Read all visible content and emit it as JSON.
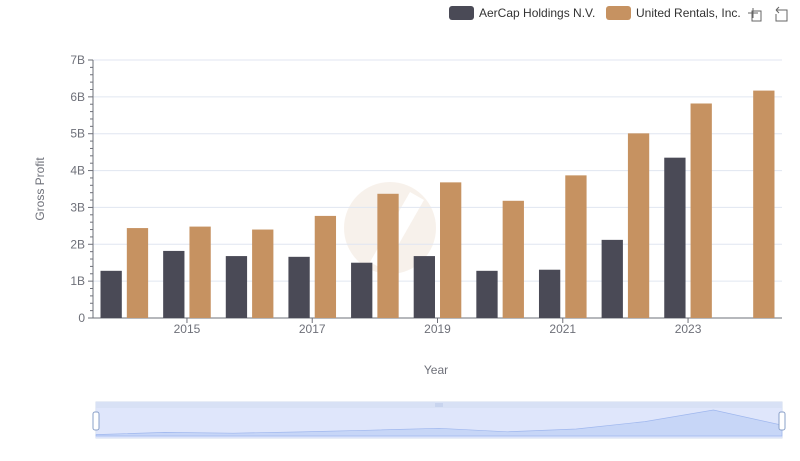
{
  "legend": {
    "placement": "top-right",
    "items": [
      {
        "label": "AerCap Holdings N.V.",
        "color": "#4a4a56"
      },
      {
        "label": "United Rentals, Inc.",
        "color": "#c69261"
      }
    ]
  },
  "toolbox": {
    "icons": [
      "data-zoom-icon",
      "reset-icon"
    ]
  },
  "chart_data": {
    "type": "bar",
    "categories": [
      "2014",
      "2015",
      "2016",
      "2017",
      "2018",
      "2019",
      "2020",
      "2021",
      "2022",
      "2023",
      "2024"
    ],
    "x_tick_labels": [
      "2015",
      "2017",
      "2019",
      "2021",
      "2023"
    ],
    "series": [
      {
        "name": "AerCap Holdings N.V.",
        "color": "#4a4a56",
        "values": [
          1.28,
          1.82,
          1.68,
          1.66,
          1.5,
          1.68,
          1.28,
          1.31,
          2.12,
          4.35,
          null
        ]
      },
      {
        "name": "United Rentals, Inc.",
        "color": "#c69261",
        "values": [
          2.44,
          2.48,
          2.4,
          2.77,
          3.37,
          3.68,
          3.18,
          3.87,
          5.01,
          5.82,
          6.17
        ]
      }
    ],
    "xlabel": "Year",
    "ylabel": "Gross Profit",
    "ylim": [
      0,
      7
    ],
    "y_tick_labels": [
      "0",
      "1B",
      "2B",
      "3B",
      "4B",
      "5B",
      "6B",
      "7B"
    ],
    "grid": true
  }
}
